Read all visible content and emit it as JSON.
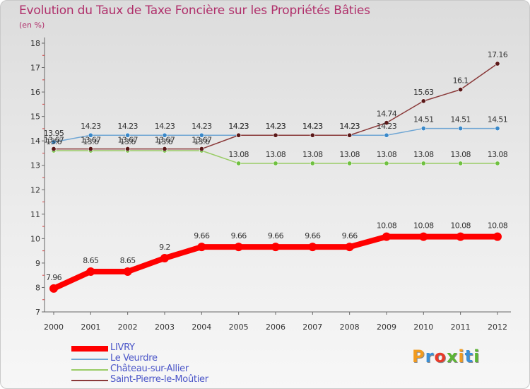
{
  "header": {
    "title": "Evolution du Taux de Taxe Foncière sur les Propriétés Bâties",
    "subtitle": "(en %)"
  },
  "logo": {
    "text": "Proxiti",
    "letters": [
      {
        "ch": "P",
        "color": "#f29b1f"
      },
      {
        "ch": "r",
        "color": "#3a8fd6"
      },
      {
        "ch": "o",
        "color": "#e83a2a"
      },
      {
        "ch": "x",
        "color": "#5cb534"
      },
      {
        "ch": "i",
        "color": "#f29b1f"
      },
      {
        "ch": "t",
        "color": "#3a8fd6"
      },
      {
        "ch": "i",
        "color": "#5cb534"
      }
    ]
  },
  "chart_data": {
    "type": "line",
    "title": "Evolution du Taux de Taxe Foncière sur les Propriétés Bâties",
    "ylabel": "(en %)",
    "xlabel": "",
    "ylim": [
      7,
      18
    ],
    "yticks": [
      "7",
      "8",
      "9",
      "10",
      "11",
      "12",
      "13",
      "14",
      "15",
      "16",
      "17",
      "18"
    ],
    "categories": [
      "2000",
      "2001",
      "2002",
      "2003",
      "2004",
      "2005",
      "2006",
      "2007",
      "2008",
      "2009",
      "2010",
      "2011",
      "2012"
    ],
    "grid": false,
    "legend_position": "bottom-left",
    "series": [
      {
        "name": "LIVRY",
        "color": "#ff0000",
        "emphasis": true,
        "values": [
          7.96,
          8.65,
          8.65,
          9.2,
          9.66,
          9.66,
          9.66,
          9.66,
          9.66,
          10.08,
          10.08,
          10.08,
          10.08
        ],
        "labels": [
          "7.96",
          "8.65",
          "8.65",
          "9.2",
          "9.66",
          "9.66",
          "9.66",
          "9.66",
          "9.66",
          "10.08",
          "10.08",
          "10.08",
          "10.08"
        ]
      },
      {
        "name": "Le Veurdre",
        "color": "#6fa6d4",
        "marker": "#3a88c8",
        "values": [
          13.95,
          14.23,
          14.23,
          14.23,
          14.23,
          14.23,
          14.23,
          14.23,
          14.23,
          14.23,
          14.51,
          14.51,
          14.51
        ],
        "labels": [
          "13.95",
          "14.23",
          "14.23",
          "14.23",
          "14.23",
          "14.23",
          "14.23",
          "14.23",
          "14.23",
          "14.23",
          "14.51",
          "14.51",
          "14.51"
        ]
      },
      {
        "name": "Château-sur-Allier",
        "color": "#99cc66",
        "marker": "#6fc040",
        "values": [
          13.6,
          13.6,
          13.6,
          13.6,
          13.6,
          13.08,
          13.08,
          13.08,
          13.08,
          13.08,
          13.08,
          13.08,
          13.08
        ],
        "labels": [
          "13.6",
          "13.6",
          "13.6",
          "13.6",
          "13.6",
          "13.08",
          "13.08",
          "13.08",
          "13.08",
          "13.08",
          "13.08",
          "13.08",
          "13.08"
        ]
      },
      {
        "name": "Saint-Pierre-le-Moûtier",
        "color": "#8a3a3a",
        "marker": "#5a1818",
        "values": [
          13.67,
          13.67,
          13.67,
          13.67,
          13.67,
          14.23,
          14.23,
          14.23,
          14.23,
          14.74,
          15.63,
          16.1,
          17.16
        ],
        "labels": [
          "13.67",
          "13.67",
          "13.67",
          "13.67",
          "13.67",
          "14.23",
          "14.23",
          "14.23",
          "14.23",
          "14.74",
          "15.63",
          "16.1",
          "17.16"
        ]
      }
    ]
  }
}
